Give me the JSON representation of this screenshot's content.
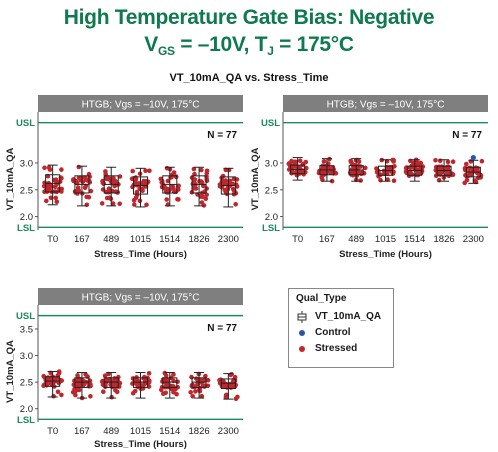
{
  "header": {
    "line1": "High Temperature Gate Bias: Negative",
    "line2_prefix": "V",
    "line2_sub1": "GS",
    "line2_mid": " = –10V, T",
    "line2_sub2": "J",
    "line2_suffix": " = 175°C",
    "subtitle": "VT_10mA_QA vs. Stress_Time"
  },
  "legend": {
    "title": "Qual_Type",
    "items": [
      {
        "label": "VT_10mA_QA",
        "symbol": "box"
      },
      {
        "label": "Control",
        "symbol": "dot",
        "color": "#2a56a8"
      },
      {
        "label": "Stressed",
        "symbol": "dot",
        "color": "#c0272d"
      }
    ]
  },
  "colors": {
    "spec_line": "#1c8a5e",
    "stressed": "#c0272d",
    "control": "#2a56a8",
    "panel_header_bg": "#7f7f7f"
  },
  "chart_data": [
    {
      "type": "box",
      "panel_title": "HTGB; Vgs = –10V, 175°C",
      "n_label": "N = 77",
      "xlabel": "Stress_Time (Hours)",
      "ylabel": "VT_10mA_QA",
      "categories": [
        "T0",
        "167",
        "489",
        "1015",
        "1514",
        "1826",
        "2300"
      ],
      "ytick_labels": [
        "2.0",
        "2.5",
        "3.0"
      ],
      "yticks": [
        2.0,
        2.5,
        3.0
      ],
      "ylim": [
        1.75,
        3.95
      ],
      "usl": 3.75,
      "usl_label": "USL",
      "lsl": 1.8,
      "lsl_label": "LSL",
      "boxes": [
        {
          "min": 2.22,
          "q1": 2.46,
          "median": 2.62,
          "q3": 2.78,
          "max": 2.96
        },
        {
          "min": 2.2,
          "q1": 2.44,
          "median": 2.6,
          "q3": 2.76,
          "max": 2.94
        },
        {
          "min": 2.2,
          "q1": 2.44,
          "median": 2.6,
          "q3": 2.76,
          "max": 2.92
        },
        {
          "min": 2.18,
          "q1": 2.42,
          "median": 2.58,
          "q3": 2.74,
          "max": 2.9
        },
        {
          "min": 2.2,
          "q1": 2.44,
          "median": 2.6,
          "q3": 2.76,
          "max": 2.92
        },
        {
          "min": 2.2,
          "q1": 2.44,
          "median": 2.6,
          "q3": 2.76,
          "max": 2.92
        },
        {
          "min": 2.18,
          "q1": 2.42,
          "median": 2.58,
          "q3": 2.74,
          "max": 2.9
        }
      ],
      "grid": false
    },
    {
      "type": "box",
      "panel_title": "HTGB; Vgs = –10V, 175°C",
      "n_label": "N = 77",
      "xlabel": "Stress_Time (Hours)",
      "ylabel": "VT_10mA_QA",
      "categories": [
        "T0",
        "167",
        "489",
        "1015",
        "1514",
        "1826",
        "2300"
      ],
      "ytick_labels": [
        "2.0",
        "2.5",
        "3.0"
      ],
      "yticks": [
        2.0,
        2.5,
        3.0
      ],
      "ylim": [
        1.75,
        3.95
      ],
      "usl": 3.75,
      "usl_label": "USL",
      "lsl": 1.8,
      "lsl_label": "LSL",
      "boxes": [
        {
          "min": 2.68,
          "q1": 2.8,
          "median": 2.88,
          "q3": 2.96,
          "max": 3.1
        },
        {
          "min": 2.66,
          "q1": 2.78,
          "median": 2.87,
          "q3": 2.95,
          "max": 3.08
        },
        {
          "min": 2.66,
          "q1": 2.78,
          "median": 2.87,
          "q3": 2.95,
          "max": 3.08
        },
        {
          "min": 2.66,
          "q1": 2.77,
          "median": 2.86,
          "q3": 2.94,
          "max": 3.06
        },
        {
          "min": 2.66,
          "q1": 2.77,
          "median": 2.86,
          "q3": 2.94,
          "max": 3.06
        },
        {
          "min": 2.66,
          "q1": 2.77,
          "median": 2.86,
          "q3": 2.94,
          "max": 3.06
        },
        {
          "min": 2.62,
          "q1": 2.74,
          "median": 2.83,
          "q3": 2.92,
          "max": 3.05
        }
      ],
      "control_points": [
        {
          "category": "2300",
          "y": 3.1
        }
      ],
      "grid": false
    },
    {
      "type": "box",
      "panel_title": "HTGB; Vgs = –10V, 175°C",
      "n_label": "N = 77",
      "xlabel": "Stress_Time (Hours)",
      "ylabel": "VT_10mA_QA",
      "categories": [
        "T0",
        "167",
        "489",
        "1015",
        "1514",
        "1826",
        "2300"
      ],
      "ytick_labels": [
        "2.0",
        "2.5",
        "3.0",
        "3.5"
      ],
      "yticks": [
        2.0,
        2.5,
        3.0,
        3.5
      ],
      "ylim": [
        1.75,
        3.95
      ],
      "usl": 3.75,
      "usl_label": "USL",
      "lsl": 1.8,
      "lsl_label": "LSL",
      "boxes": [
        {
          "min": 2.22,
          "q1": 2.42,
          "median": 2.52,
          "q3": 2.6,
          "max": 2.7
        },
        {
          "min": 2.2,
          "q1": 2.4,
          "median": 2.5,
          "q3": 2.58,
          "max": 2.68
        },
        {
          "min": 2.2,
          "q1": 2.4,
          "median": 2.5,
          "q3": 2.58,
          "max": 2.68
        },
        {
          "min": 2.2,
          "q1": 2.4,
          "median": 2.5,
          "q3": 2.58,
          "max": 2.68
        },
        {
          "min": 2.2,
          "q1": 2.4,
          "median": 2.5,
          "q3": 2.58,
          "max": 2.68
        },
        {
          "min": 2.2,
          "q1": 2.4,
          "median": 2.5,
          "q3": 2.58,
          "max": 2.68
        },
        {
          "min": 2.18,
          "q1": 2.38,
          "median": 2.48,
          "q3": 2.56,
          "max": 2.66
        }
      ],
      "grid": false
    }
  ]
}
